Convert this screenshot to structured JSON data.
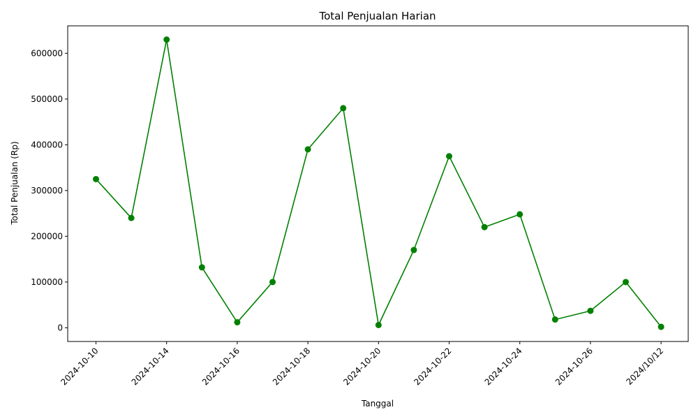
{
  "chart_data": {
    "type": "line",
    "title": "Total Penjualan Harian",
    "xlabel": "Tanggal",
    "ylabel": "Total Penjualan (Rp)",
    "color": "#008000",
    "grid": false,
    "ylim": [
      -30000,
      660000
    ],
    "yticks": [
      0,
      100000,
      200000,
      300000,
      400000,
      500000,
      600000
    ],
    "xtick_labels": [
      "2024-10-10",
      "2024-10-14",
      "2024-10-16",
      "2024-10-18",
      "2024-10-20",
      "2024-10-22",
      "2024-10-24",
      "2024-10-26",
      "2024/10/12"
    ],
    "series": [
      {
        "values": [
          325000,
          240000,
          630000,
          132000,
          12000,
          100000,
          390000,
          480000,
          6000,
          170000,
          375000,
          220000,
          248000,
          18000,
          37000,
          100000,
          2000
        ]
      }
    ]
  }
}
